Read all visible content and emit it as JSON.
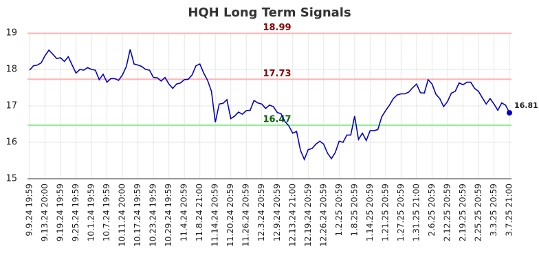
{
  "chart_data": {
    "type": "line",
    "title": "HQH Long Term Signals",
    "color": "#0000cc",
    "categories": [
      "9.9.24 19:59",
      null,
      null,
      null,
      "9.13.24 20:00",
      null,
      null,
      null,
      "9.19.24 19:59",
      null,
      null,
      null,
      "9.25.24 19:59",
      null,
      null,
      null,
      "10.1.24 19:59",
      null,
      null,
      null,
      "10.7.24 19:59",
      null,
      null,
      null,
      "10.11.24 20:00",
      null,
      null,
      null,
      "10.17.24 19:59",
      null,
      null,
      null,
      "10.23.24 19:59",
      null,
      null,
      null,
      "10.29.24 19:59",
      null,
      null,
      null,
      "11.4.24 20:59",
      null,
      null,
      null,
      "11.8.24 21:00",
      null,
      null,
      null,
      "11.14.24 20:59",
      null,
      null,
      null,
      "11.20.24 20:59",
      null,
      null,
      null,
      "11.26.24 20:59",
      null,
      null,
      null,
      "12.3.24 20:59",
      null,
      null,
      null,
      "12.9.24 20:59",
      null,
      null,
      null,
      "12.13.24 21:00",
      null,
      null,
      null,
      "12.19.24 20:59",
      null,
      null,
      null,
      "12.26.24 20:59",
      null,
      null,
      null,
      "1.2.25 20:59",
      null,
      null,
      null,
      "1.8.25 20:59",
      null,
      null,
      null,
      "1.14.25 20:59",
      null,
      null,
      null,
      "1.21.25 20:59",
      null,
      null,
      null,
      "1.27.25 20:59",
      null,
      null,
      null,
      "1.31.25 21:00",
      null,
      null,
      null,
      "2.6.25 20:59",
      null,
      null,
      null,
      "2.12.25 20:59",
      null,
      null,
      null,
      "2.19.25 20:59",
      null,
      null,
      null,
      "2.25.25 20:59",
      null,
      null,
      null,
      "3.3.25 20:59",
      null,
      null,
      null,
      "3.7.25 21:00"
    ],
    "values": [
      17.98,
      18.1,
      18.12,
      18.18,
      18.38,
      18.53,
      18.42,
      18.3,
      18.32,
      18.22,
      18.35,
      18.12,
      17.9,
      18.0,
      17.98,
      18.05,
      18.0,
      17.98,
      17.72,
      17.87,
      17.65,
      17.75,
      17.75,
      17.7,
      17.85,
      18.08,
      18.55,
      18.15,
      18.12,
      18.08,
      18.0,
      17.98,
      17.78,
      17.77,
      17.68,
      17.78,
      17.6,
      17.48,
      17.6,
      17.63,
      17.72,
      17.73,
      17.85,
      18.1,
      18.15,
      17.9,
      17.7,
      17.4,
      16.55,
      17.05,
      17.07,
      17.17,
      16.65,
      16.72,
      16.83,
      16.77,
      16.87,
      16.88,
      17.15,
      17.08,
      17.05,
      16.93,
      17.02,
      16.98,
      16.82,
      16.78,
      16.57,
      16.45,
      16.25,
      16.3,
      15.78,
      15.53,
      15.8,
      15.83,
      15.95,
      16.03,
      15.95,
      15.7,
      15.55,
      15.72,
      16.03,
      16.0,
      16.2,
      16.2,
      16.72,
      16.08,
      16.25,
      16.05,
      16.32,
      16.32,
      16.35,
      16.7,
      16.87,
      17.02,
      17.2,
      17.3,
      17.33,
      17.33,
      17.38,
      17.5,
      17.6,
      17.36,
      17.35,
      17.72,
      17.6,
      17.32,
      17.2,
      16.98,
      17.12,
      17.35,
      17.4,
      17.63,
      17.58,
      17.65,
      17.65,
      17.48,
      17.4,
      17.22,
      17.05,
      17.2,
      17.05,
      16.88,
      17.08,
      17.02,
      16.81
    ],
    "ylim": [
      15,
      19
    ],
    "yticks": [
      15,
      16,
      17,
      18,
      19
    ],
    "grid": true,
    "hlines": [
      {
        "value": 18.99,
        "color": "#ffb3b3",
        "label_color": "#8b0000"
      },
      {
        "value": 17.73,
        "color": "#ffb3b3",
        "label_color": "#8b0000"
      },
      {
        "value": 16.47,
        "color": "#90ee90",
        "label_color": "#006400"
      }
    ]
  }
}
